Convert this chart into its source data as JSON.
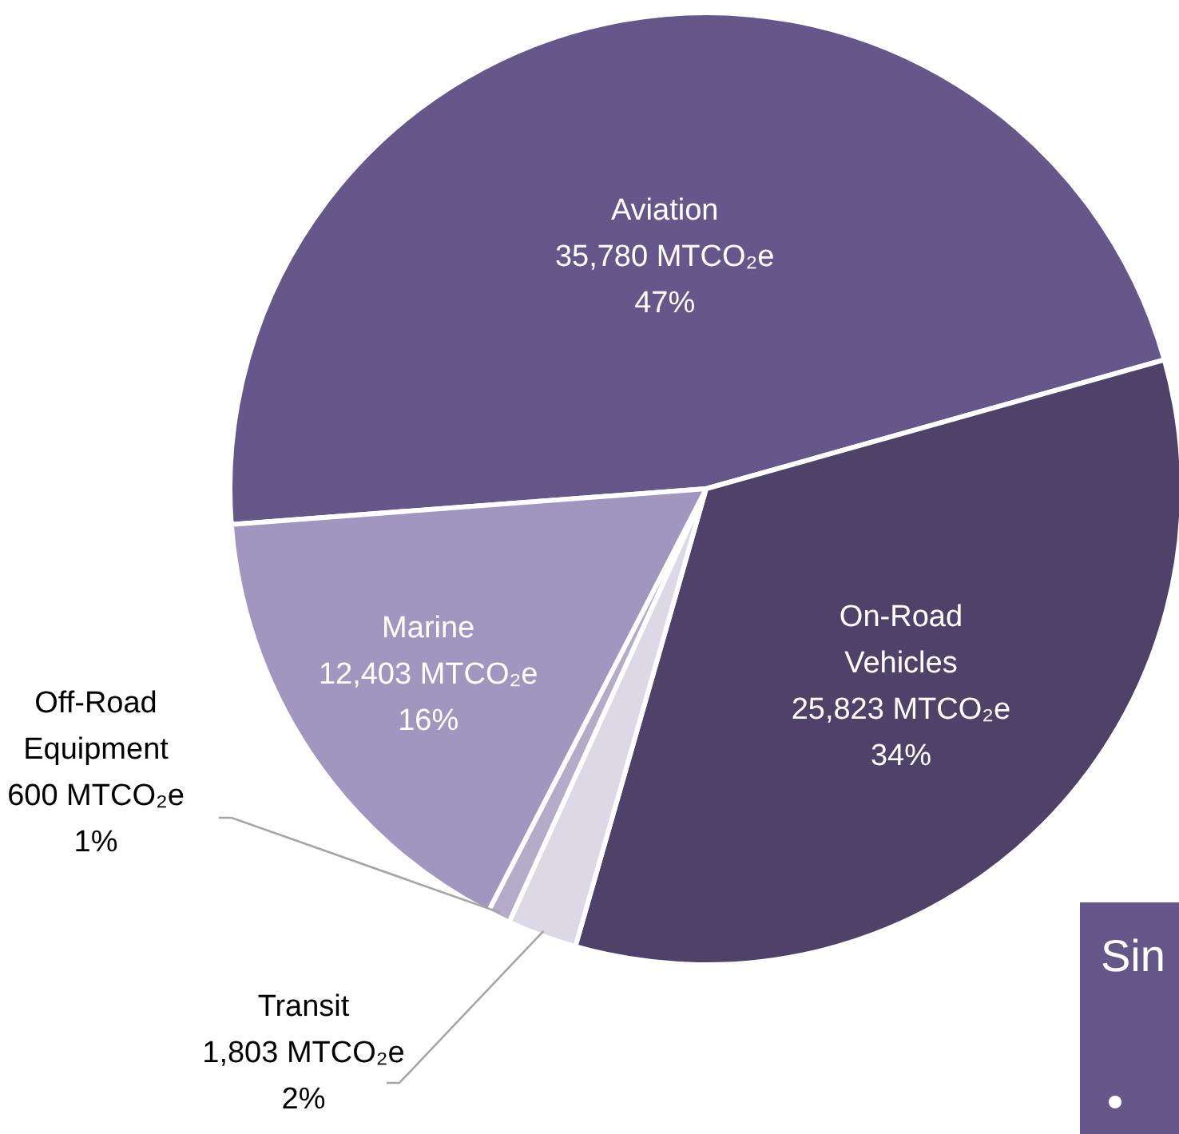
{
  "chart_data": {
    "type": "pie",
    "categories": [
      "Aviation",
      "On-Road Vehicles",
      "Transit",
      "Off-Road Equipment",
      "Marine"
    ],
    "values": [
      35780,
      25823,
      1803,
      600,
      12403
    ],
    "colors": [
      "#65578a",
      "#4f4269",
      "#dcd8e6",
      "#b4abc9",
      "#a196bf"
    ],
    "value_labels": [
      "35,780 MTCO₂e\n47%",
      "25,823 MTCO₂e\n34%",
      "1,803 MTCO₂e\n2%",
      "600 MTCO₂e\n1%",
      "12,403 MTCO₂e\n16%"
    ],
    "annotations": [
      "Sin"
    ]
  }
}
